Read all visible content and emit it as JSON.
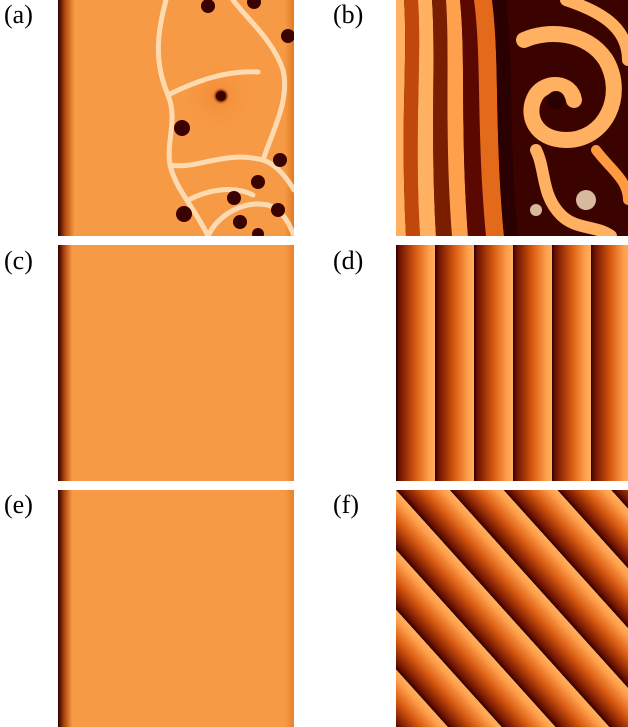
{
  "figure": {
    "panels": [
      {
        "id": "a",
        "label": "(a)",
        "pattern": "spots-and-fronts"
      },
      {
        "id": "b",
        "label": "(b)",
        "pattern": "spiral-wave"
      },
      {
        "id": "c",
        "label": "(c)",
        "pattern": "uniform-with-edge"
      },
      {
        "id": "d",
        "label": "(d)",
        "pattern": "vertical-stripes"
      },
      {
        "id": "e",
        "label": "(e)",
        "pattern": "uniform-with-edge"
      },
      {
        "id": "f",
        "label": "(f)",
        "pattern": "diagonal-stripes"
      }
    ],
    "colors": {
      "bright": "#ffb060",
      "mid": "#f79a45",
      "dark": "#2b0000",
      "highlight": "#ffe7c4"
    }
  }
}
